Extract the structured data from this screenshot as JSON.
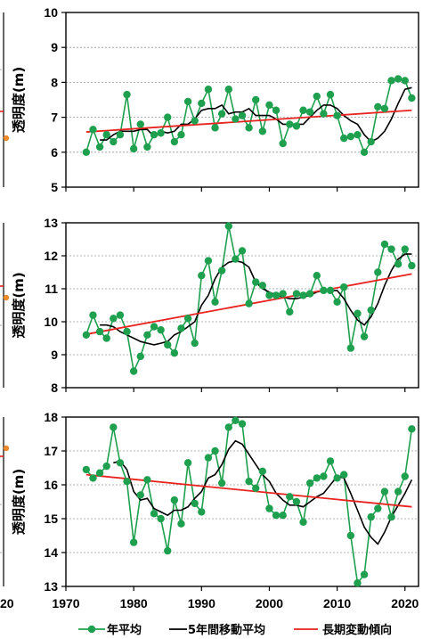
{
  "chart_data": [
    {
      "type": "line",
      "ylabel": "透明度(m)",
      "xlim": [
        1970,
        2022
      ],
      "ylim": [
        5,
        10
      ],
      "yticks": [
        5,
        6,
        7,
        8,
        9,
        10
      ],
      "x": [
        1973,
        1974,
        1975,
        1976,
        1977,
        1978,
        1979,
        1980,
        1981,
        1982,
        1983,
        1984,
        1985,
        1986,
        1987,
        1988,
        1989,
        1990,
        1991,
        1992,
        1993,
        1994,
        1995,
        1996,
        1997,
        1998,
        1999,
        2000,
        2001,
        2002,
        2003,
        2004,
        2005,
        2006,
        2007,
        2008,
        2009,
        2010,
        2011,
        2012,
        2013,
        2014,
        2015,
        2016,
        2017,
        2018,
        2019,
        2020,
        2021
      ],
      "series": [
        {
          "name": "年平均",
          "color": "#1ea04e",
          "values": [
            6.0,
            6.65,
            6.15,
            6.5,
            6.3,
            6.5,
            7.65,
            6.1,
            6.8,
            6.15,
            6.5,
            6.55,
            7.0,
            6.3,
            6.5,
            7.45,
            6.9,
            7.4,
            7.8,
            6.7,
            7.1,
            7.8,
            6.95,
            7.05,
            6.7,
            7.5,
            6.6,
            7.35,
            7.2,
            6.25,
            6.8,
            6.75,
            7.2,
            7.15,
            7.6,
            7.1,
            7.65,
            7.05,
            6.4,
            6.45,
            6.5,
            6.0,
            6.3,
            7.3,
            7.25,
            8.05,
            8.1,
            8.05,
            7.55
          ]
        },
        {
          "name": "5年間移動平均",
          "color": "#000000",
          "values": [
            null,
            null,
            6.35,
            6.35,
            6.5,
            6.6,
            6.6,
            6.6,
            6.65,
            6.65,
            6.45,
            6.6,
            6.55,
            6.6,
            6.8,
            6.8,
            6.95,
            7.2,
            7.25,
            7.25,
            7.35,
            7.1,
            7.15,
            7.15,
            7.25,
            7.05,
            7.05,
            7.05,
            6.95,
            6.8,
            6.8,
            6.8,
            6.8,
            7.0,
            7.2,
            7.35,
            7.35,
            7.25,
            7.05,
            6.9,
            6.8,
            6.5,
            6.3,
            6.4,
            6.6,
            6.95,
            7.4,
            7.8,
            7.85
          ]
        },
        {
          "name": "長期変動傾向",
          "color": "#e8231f",
          "values": [
            6.58,
            null,
            null,
            null,
            null,
            null,
            null,
            null,
            null,
            null,
            null,
            null,
            null,
            null,
            null,
            null,
            null,
            null,
            null,
            null,
            null,
            null,
            null,
            null,
            null,
            null,
            null,
            null,
            null,
            null,
            null,
            null,
            null,
            null,
            null,
            null,
            null,
            null,
            null,
            null,
            null,
            null,
            null,
            null,
            null,
            null,
            null,
            null,
            7.2
          ]
        }
      ]
    },
    {
      "type": "line",
      "ylabel": "透明度(m)",
      "xlim": [
        1970,
        2022
      ],
      "ylim": [
        8,
        13
      ],
      "yticks": [
        8,
        9,
        10,
        11,
        12,
        13
      ],
      "x": [
        1973,
        1974,
        1975,
        1976,
        1977,
        1978,
        1979,
        1980,
        1981,
        1982,
        1983,
        1984,
        1985,
        1986,
        1987,
        1988,
        1989,
        1990,
        1991,
        1992,
        1993,
        1994,
        1995,
        1996,
        1997,
        1998,
        1999,
        2000,
        2001,
        2002,
        2003,
        2004,
        2005,
        2006,
        2007,
        2008,
        2009,
        2010,
        2011,
        2012,
        2013,
        2014,
        2015,
        2016,
        2017,
        2018,
        2019,
        2020,
        2021
      ],
      "series": [
        {
          "name": "年平均",
          "color": "#1ea04e",
          "values": [
            9.6,
            10.2,
            9.7,
            9.5,
            10.1,
            10.2,
            9.7,
            8.5,
            8.95,
            9.6,
            9.85,
            9.75,
            9.3,
            9.05,
            9.8,
            10.1,
            9.35,
            11.4,
            11.85,
            10.6,
            11.55,
            12.9,
            11.9,
            12.15,
            10.55,
            11.2,
            11.1,
            10.8,
            10.8,
            10.85,
            10.3,
            10.85,
            10.8,
            10.85,
            11.4,
            10.95,
            10.95,
            10.6,
            11.05,
            9.2,
            10.25,
            9.55,
            10.35,
            11.5,
            12.35,
            12.2,
            11.75,
            12.2,
            11.7
          ]
        },
        {
          "name": "5年間移動平均",
          "color": "#000000",
          "values": [
            null,
            null,
            9.9,
            9.9,
            9.85,
            9.7,
            9.6,
            9.5,
            9.4,
            9.35,
            9.3,
            9.35,
            9.4,
            9.6,
            9.7,
            9.85,
            10.0,
            10.5,
            10.8,
            11.3,
            11.65,
            11.8,
            11.85,
            11.8,
            11.65,
            11.2,
            11.0,
            10.9,
            10.8,
            10.75,
            10.7,
            10.7,
            10.75,
            10.8,
            10.9,
            10.95,
            10.95,
            10.95,
            10.7,
            10.35,
            10.05,
            9.9,
            10.15,
            10.55,
            11.1,
            11.55,
            11.9,
            12.05,
            12.05
          ]
        },
        {
          "name": "長期変動傾向",
          "color": "#e8231f",
          "values": [
            9.62,
            null,
            null,
            null,
            null,
            null,
            null,
            null,
            null,
            null,
            null,
            null,
            null,
            null,
            null,
            null,
            null,
            null,
            null,
            null,
            null,
            null,
            null,
            null,
            null,
            null,
            null,
            null,
            null,
            null,
            null,
            null,
            null,
            null,
            null,
            null,
            null,
            null,
            null,
            null,
            null,
            null,
            null,
            null,
            null,
            null,
            null,
            null,
            11.45
          ]
        }
      ]
    },
    {
      "type": "line",
      "ylabel": "透明度(m)",
      "xlim": [
        1970,
        2022
      ],
      "ylim": [
        13,
        18
      ],
      "yticks": [
        13,
        14,
        15,
        16,
        17,
        18
      ],
      "xticks": [
        1970,
        1980,
        1990,
        2000,
        2010,
        2020
      ],
      "x": [
        1973,
        1974,
        1975,
        1976,
        1977,
        1978,
        1979,
        1980,
        1981,
        1982,
        1983,
        1984,
        1985,
        1986,
        1987,
        1988,
        1989,
        1990,
        1991,
        1992,
        1993,
        1994,
        1995,
        1996,
        1997,
        1998,
        1999,
        2000,
        2001,
        2002,
        2003,
        2004,
        2005,
        2006,
        2007,
        2008,
        2009,
        2010,
        2011,
        2012,
        2013,
        2014,
        2015,
        2016,
        2017,
        2018,
        2019,
        2020,
        2021
      ],
      "series": [
        {
          "name": "年平均",
          "color": "#1ea04e",
          "values": [
            16.45,
            16.2,
            16.35,
            16.55,
            17.7,
            16.65,
            16.1,
            14.3,
            15.7,
            16.15,
            15.15,
            15.0,
            14.05,
            15.55,
            14.85,
            16.65,
            15.45,
            15.2,
            16.8,
            17.0,
            16.05,
            17.7,
            17.9,
            17.8,
            16.1,
            15.9,
            16.4,
            15.3,
            15.1,
            15.1,
            15.65,
            15.5,
            14.9,
            16.05,
            16.2,
            16.25,
            16.7,
            16.2,
            16.3,
            14.5,
            13.1,
            13.35,
            15.05,
            15.3,
            15.8,
            15.05,
            15.8,
            16.25,
            17.65
          ]
        },
        {
          "name": "5年間移動平均",
          "color": "#000000",
          "values": [
            null,
            null,
            null,
            null,
            16.65,
            16.7,
            16.45,
            15.8,
            15.55,
            15.6,
            15.3,
            15.2,
            15.1,
            15.25,
            15.25,
            15.35,
            15.6,
            15.8,
            16.2,
            16.3,
            16.6,
            17.05,
            17.3,
            17.2,
            16.9,
            16.6,
            16.3,
            16.1,
            15.75,
            15.55,
            15.4,
            15.4,
            15.35,
            15.5,
            15.65,
            15.75,
            16.0,
            16.25,
            16.2,
            15.75,
            15.25,
            14.75,
            14.45,
            14.25,
            14.6,
            15.05,
            15.4,
            15.75,
            16.15
          ]
        },
        {
          "name": "長期変動傾向",
          "color": "#e8231f",
          "values": [
            16.3,
            null,
            null,
            null,
            null,
            null,
            null,
            null,
            null,
            null,
            null,
            null,
            null,
            null,
            null,
            null,
            null,
            null,
            null,
            null,
            null,
            null,
            null,
            null,
            null,
            null,
            null,
            null,
            null,
            null,
            null,
            null,
            null,
            null,
            null,
            null,
            null,
            null,
            null,
            null,
            null,
            null,
            null,
            null,
            null,
            null,
            null,
            null,
            15.35
          ]
        }
      ]
    }
  ],
  "side_fragment": {
    "xtick": "20",
    "marker_color": "#ee8a2a",
    "trend_color": "#e8231f"
  },
  "legend": {
    "annual": "年平均",
    "moving": "5年間移動平均",
    "trend": "長期変動傾向"
  }
}
